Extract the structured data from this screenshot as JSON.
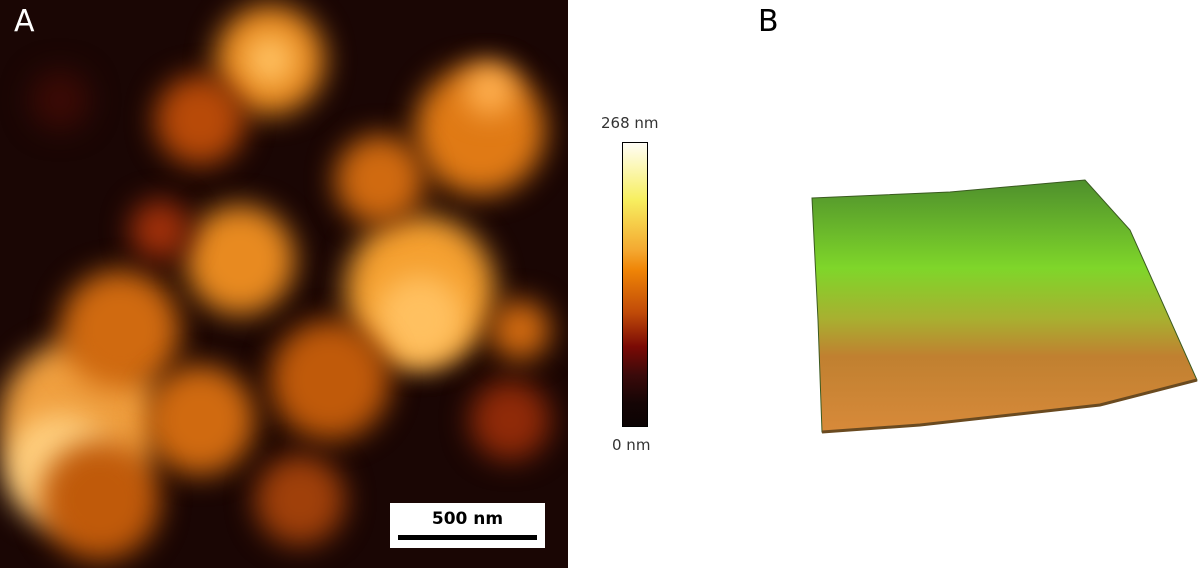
{
  "panel_a": {
    "label": "A",
    "scale_bar": "500 nm",
    "colormap_colors": [
      "#0c0404",
      "#7a0a05",
      "#ef8406",
      "#f7ef60",
      "#fffdf5"
    ]
  },
  "colorbar": {
    "max_label": "268 nm",
    "min_label": "0 nm"
  },
  "panel_b": {
    "label": "B",
    "surface_colors": [
      "#4e8f2c",
      "#7fd62a",
      "#c08030",
      "#d88a3a"
    ]
  }
}
